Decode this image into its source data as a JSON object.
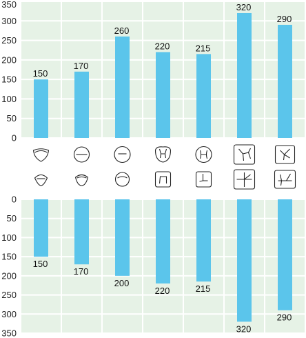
{
  "chart_data": [
    {
      "type": "bar",
      "panel": "top",
      "categories": [
        "1",
        "2",
        "3",
        "4",
        "5",
        "6",
        "7"
      ],
      "values": [
        150,
        170,
        260,
        220,
        215,
        320,
        290
      ],
      "data_labels": [
        "150",
        "170",
        "260",
        "220",
        "215",
        "320",
        "290"
      ],
      "ylim": [
        0,
        350
      ],
      "yticks": [
        "0",
        "50",
        "100",
        "150",
        "200",
        "250",
        "300",
        "350"
      ],
      "grid": true,
      "bar_color": "#5bc5eb",
      "background": "#e6f2e6",
      "grid_color": "#ffffff"
    },
    {
      "type": "bar",
      "panel": "bottom",
      "orientation": "downward",
      "categories": [
        "1",
        "2",
        "3",
        "4",
        "5",
        "6",
        "7"
      ],
      "values": [
        150,
        170,
        200,
        220,
        215,
        320,
        290
      ],
      "data_labels": [
        "150",
        "170",
        "200",
        "220",
        "215",
        "320",
        "290"
      ],
      "ylim": [
        0,
        350
      ],
      "yticks": [
        "0",
        "50",
        "100",
        "150",
        "200",
        "250",
        "300",
        "350"
      ],
      "grid": true,
      "bar_color": "#5bc5eb",
      "background": "#e6f2e6",
      "grid_color": "#ffffff"
    }
  ],
  "icons": {
    "top_row": [
      "occlusal-outline-incisor-1-icon",
      "occlusal-outline-incisor-2-icon",
      "occlusal-outline-canine-icon",
      "occlusal-outline-premolar-1-icon",
      "occlusal-outline-premolar-2-icon",
      "occlusal-outline-molar-1-icon",
      "occlusal-outline-molar-2-icon"
    ],
    "bottom_row": [
      "occlusal-outline-lower-incisor-1-icon",
      "occlusal-outline-lower-incisor-2-icon",
      "occlusal-outline-lower-canine-icon",
      "occlusal-outline-lower-premolar-1-icon",
      "occlusal-outline-lower-premolar-2-icon",
      "occlusal-outline-lower-molar-1-icon",
      "occlusal-outline-lower-molar-2-icon"
    ]
  }
}
